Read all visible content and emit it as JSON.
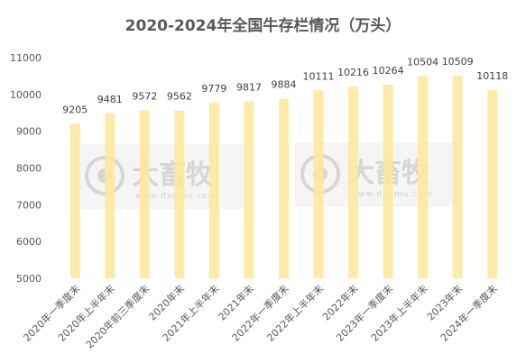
{
  "chart_data": {
    "type": "bar",
    "title": "2020-2024年全国牛存栏情况（万头）",
    "xlabel": "",
    "ylabel": "",
    "ylim": [
      5000,
      11000
    ],
    "yticks": [
      5000,
      6000,
      7000,
      8000,
      9000,
      10000,
      11000
    ],
    "grid": false,
    "legend": "none",
    "bar_color": "#ffe699",
    "categories": [
      "2020年一季度末",
      "2020年上半年末",
      "2020年前三季度末",
      "2020年末",
      "2021年上半年末",
      "2021年末",
      "2022年一季度末",
      "2022年上半年末",
      "2022年末",
      "2023年一季度末",
      "2023年上半年末",
      "2023年末",
      "2024年一季度末"
    ],
    "values": [
      9205,
      9481,
      9572,
      9562,
      9779,
      9817,
      9884,
      10111,
      10216,
      10264,
      10504,
      10509,
      10118
    ]
  },
  "watermark": {
    "brand": "大畜牧",
    "site": "www.dxumu.com"
  }
}
